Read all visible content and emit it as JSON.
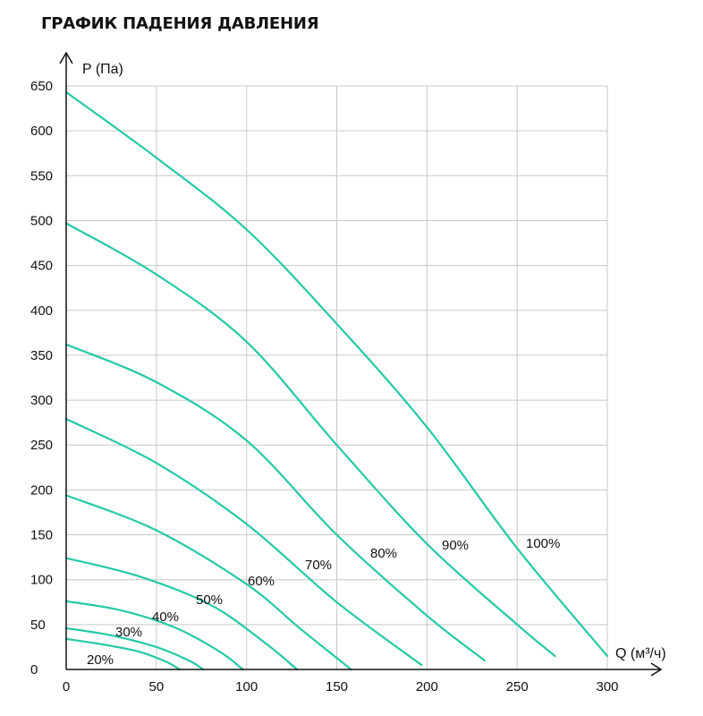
{
  "title": "ГРАФИК ПАДЕНИЯ ДАВЛЕНИЯ",
  "colors": {
    "curve": "#25c9a6",
    "grid": "#c8c8c8",
    "axis": "#111111"
  },
  "chart_data": {
    "type": "line",
    "title": "ГРАФИК ПАДЕНИЯ ДАВЛЕНИЯ",
    "xlabel": "Q (м³/ч)",
    "ylabel": "P (Па)",
    "xlim": [
      0,
      300
    ],
    "ylim": [
      0,
      650
    ],
    "xticks": [
      0,
      50,
      100,
      150,
      200,
      250,
      300
    ],
    "yticks": [
      0,
      50,
      100,
      150,
      200,
      250,
      300,
      350,
      400,
      450,
      500,
      550,
      600,
      650
    ],
    "grid": true,
    "series": [
      {
        "name": "20%",
        "points": [
          [
            0,
            34
          ],
          [
            20,
            28
          ],
          [
            40,
            20
          ],
          [
            55,
            9
          ],
          [
            63,
            0
          ]
        ]
      },
      {
        "name": "30%",
        "points": [
          [
            0,
            46
          ],
          [
            25,
            38
          ],
          [
            50,
            25
          ],
          [
            68,
            10
          ],
          [
            76,
            0
          ]
        ]
      },
      {
        "name": "40%",
        "points": [
          [
            0,
            76
          ],
          [
            30,
            66
          ],
          [
            60,
            47
          ],
          [
            85,
            20
          ],
          [
            98,
            0
          ]
        ]
      },
      {
        "name": "50%",
        "points": [
          [
            0,
            124
          ],
          [
            40,
            104
          ],
          [
            80,
            72
          ],
          [
            110,
            30
          ],
          [
            128,
            0
          ]
        ]
      },
      {
        "name": "60%",
        "points": [
          [
            0,
            194
          ],
          [
            50,
            155
          ],
          [
            100,
            95
          ],
          [
            130,
            45
          ],
          [
            158,
            0
          ]
        ]
      },
      {
        "name": "70%",
        "points": [
          [
            0,
            279
          ],
          [
            50,
            230
          ],
          [
            100,
            162
          ],
          [
            150,
            75
          ],
          [
            197,
            5
          ]
        ]
      },
      {
        "name": "80%",
        "points": [
          [
            0,
            362
          ],
          [
            50,
            320
          ],
          [
            100,
            255
          ],
          [
            150,
            150
          ],
          [
            200,
            60
          ],
          [
            232,
            10
          ]
        ]
      },
      {
        "name": "90%",
        "points": [
          [
            0,
            497
          ],
          [
            50,
            440
          ],
          [
            100,
            365
          ],
          [
            150,
            250
          ],
          [
            200,
            140
          ],
          [
            250,
            50
          ],
          [
            271,
            15
          ]
        ]
      },
      {
        "name": "100%",
        "points": [
          [
            0,
            643
          ],
          [
            50,
            570
          ],
          [
            100,
            490
          ],
          [
            150,
            385
          ],
          [
            200,
            270
          ],
          [
            250,
            135
          ],
          [
            300,
            15
          ]
        ]
      }
    ]
  }
}
